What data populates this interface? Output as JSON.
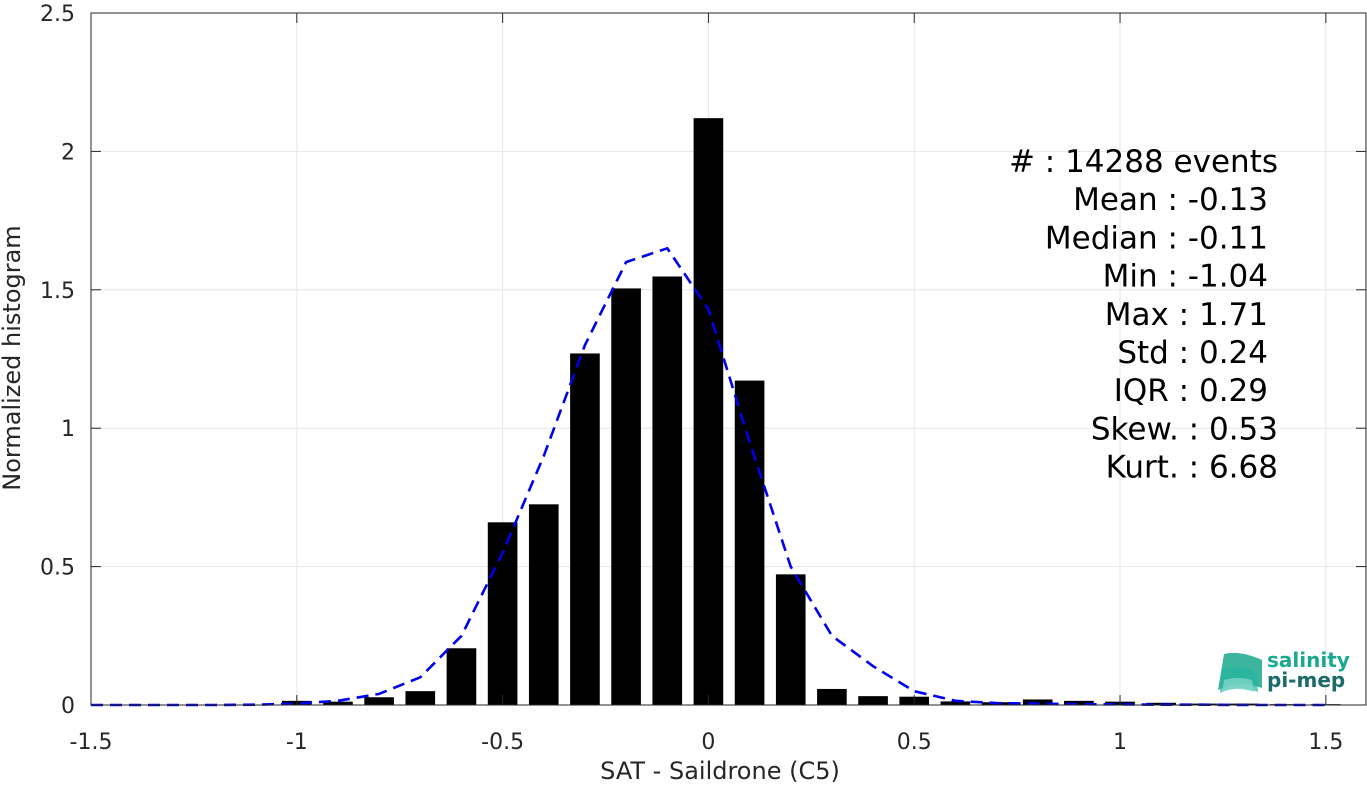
{
  "chart_data": {
    "type": "bar",
    "xlabel": "SAT - Saildrone (C5)",
    "ylabel": "Normalized histogram",
    "xlim": [
      -1.5,
      1.6
    ],
    "ylim": [
      0,
      2.5
    ],
    "grid": true,
    "x_ticks": [
      -1.5,
      -1,
      -0.5,
      0,
      0.5,
      1,
      1.5
    ],
    "x_tick_labels": [
      "-1.5",
      "-1",
      "-0.5",
      "0",
      "0.5",
      "1",
      "1.5"
    ],
    "y_ticks": [
      0,
      0.5,
      1,
      1.5,
      2,
      2.5
    ],
    "y_tick_labels": [
      "0",
      "0.5",
      "1",
      "1.5",
      "2",
      "2.5"
    ],
    "bars": {
      "x": [
        -1.0,
        -0.9,
        -0.8,
        -0.7,
        -0.6,
        -0.5,
        -0.4,
        -0.3,
        -0.2,
        -0.1,
        0.0,
        0.1,
        0.2,
        0.3,
        0.4,
        0.5,
        0.6,
        0.7,
        0.8,
        0.9,
        1.0,
        1.1,
        1.2,
        1.3,
        1.4,
        1.5
      ],
      "values": [
        0.015,
        0.012,
        0.028,
        0.05,
        0.205,
        0.66,
        0.725,
        1.27,
        1.505,
        1.548,
        2.12,
        1.172,
        0.472,
        0.058,
        0.032,
        0.03,
        0.013,
        0.01,
        0.02,
        0.015,
        0.012,
        0.008,
        0.005,
        0.005,
        0.003,
        0.003
      ],
      "color": "#000000"
    },
    "fit_curve": {
      "style": "dashed",
      "color": "#0000ee",
      "x": [
        -1.5,
        -1.4,
        -1.3,
        -1.2,
        -1.1,
        -1.0,
        -0.9,
        -0.8,
        -0.7,
        -0.6,
        -0.5,
        -0.4,
        -0.3,
        -0.2,
        -0.1,
        0.0,
        0.1,
        0.2,
        0.3,
        0.4,
        0.5,
        0.6,
        0.7,
        0.8,
        0.9,
        1.0,
        1.1,
        1.2,
        1.3,
        1.4,
        1.5
      ],
      "y": [
        0,
        0,
        0,
        0,
        0.001,
        0.005,
        0.015,
        0.04,
        0.1,
        0.25,
        0.55,
        0.9,
        1.3,
        1.6,
        1.65,
        1.43,
        0.95,
        0.5,
        0.25,
        0.14,
        0.05,
        0.015,
        0.007,
        0.005,
        0.003,
        0.002,
        0.001,
        0.001,
        0,
        0,
        0
      ]
    },
    "annotations": [
      "#  : 14288 events",
      "Mean : -0.13",
      "Median : -0.11",
      "Min : -1.04",
      "Max : 1.71",
      "Std : 0.24",
      "IQR : 0.29",
      "Skew. : 0.53",
      "Kurt. : 6.68"
    ]
  },
  "logo": {
    "line1": "salinity",
    "line2": "pi-mep",
    "color1": "#1aa88e",
    "color2": "#1b6b6a"
  }
}
